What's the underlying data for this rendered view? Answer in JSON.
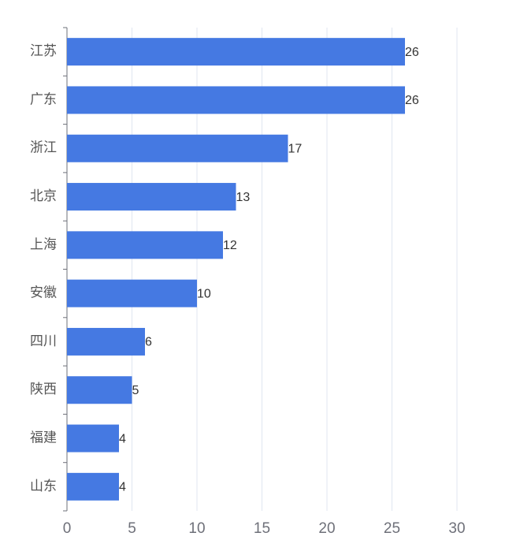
{
  "chart_data": {
    "type": "bar",
    "categories": [
      "江苏",
      "广东",
      "浙江",
      "北京",
      "上海",
      "安徽",
      "四川",
      "陕西",
      "福建",
      "山东"
    ],
    "values": [
      26,
      26,
      17,
      13,
      12,
      10,
      6,
      5,
      4,
      4
    ],
    "color": "#4579e2",
    "xlim": [
      0,
      30
    ],
    "xticks": [
      0,
      5,
      10,
      15,
      20,
      25,
      30
    ],
    "grid": true
  }
}
